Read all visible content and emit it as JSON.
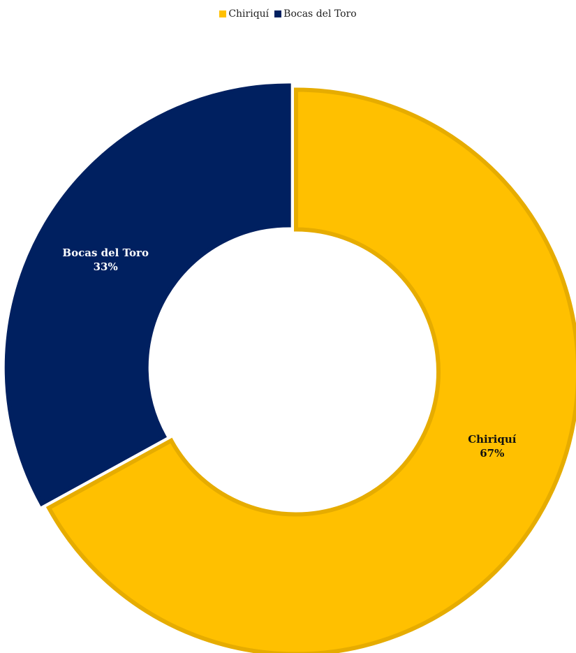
{
  "chart_data": {
    "type": "pie",
    "variant": "donut",
    "legend_position": "top-center",
    "categories": [
      "Chiriquí",
      "Bocas del Toro"
    ],
    "values": [
      67,
      33
    ],
    "value_labels": [
      "67%",
      "33%"
    ],
    "colors": [
      "#FFC000",
      "#002060"
    ],
    "outline_colors": [
      "#E6AC00",
      "#002060"
    ],
    "label_colors": [
      "#111111",
      "#FFFFFF"
    ]
  }
}
